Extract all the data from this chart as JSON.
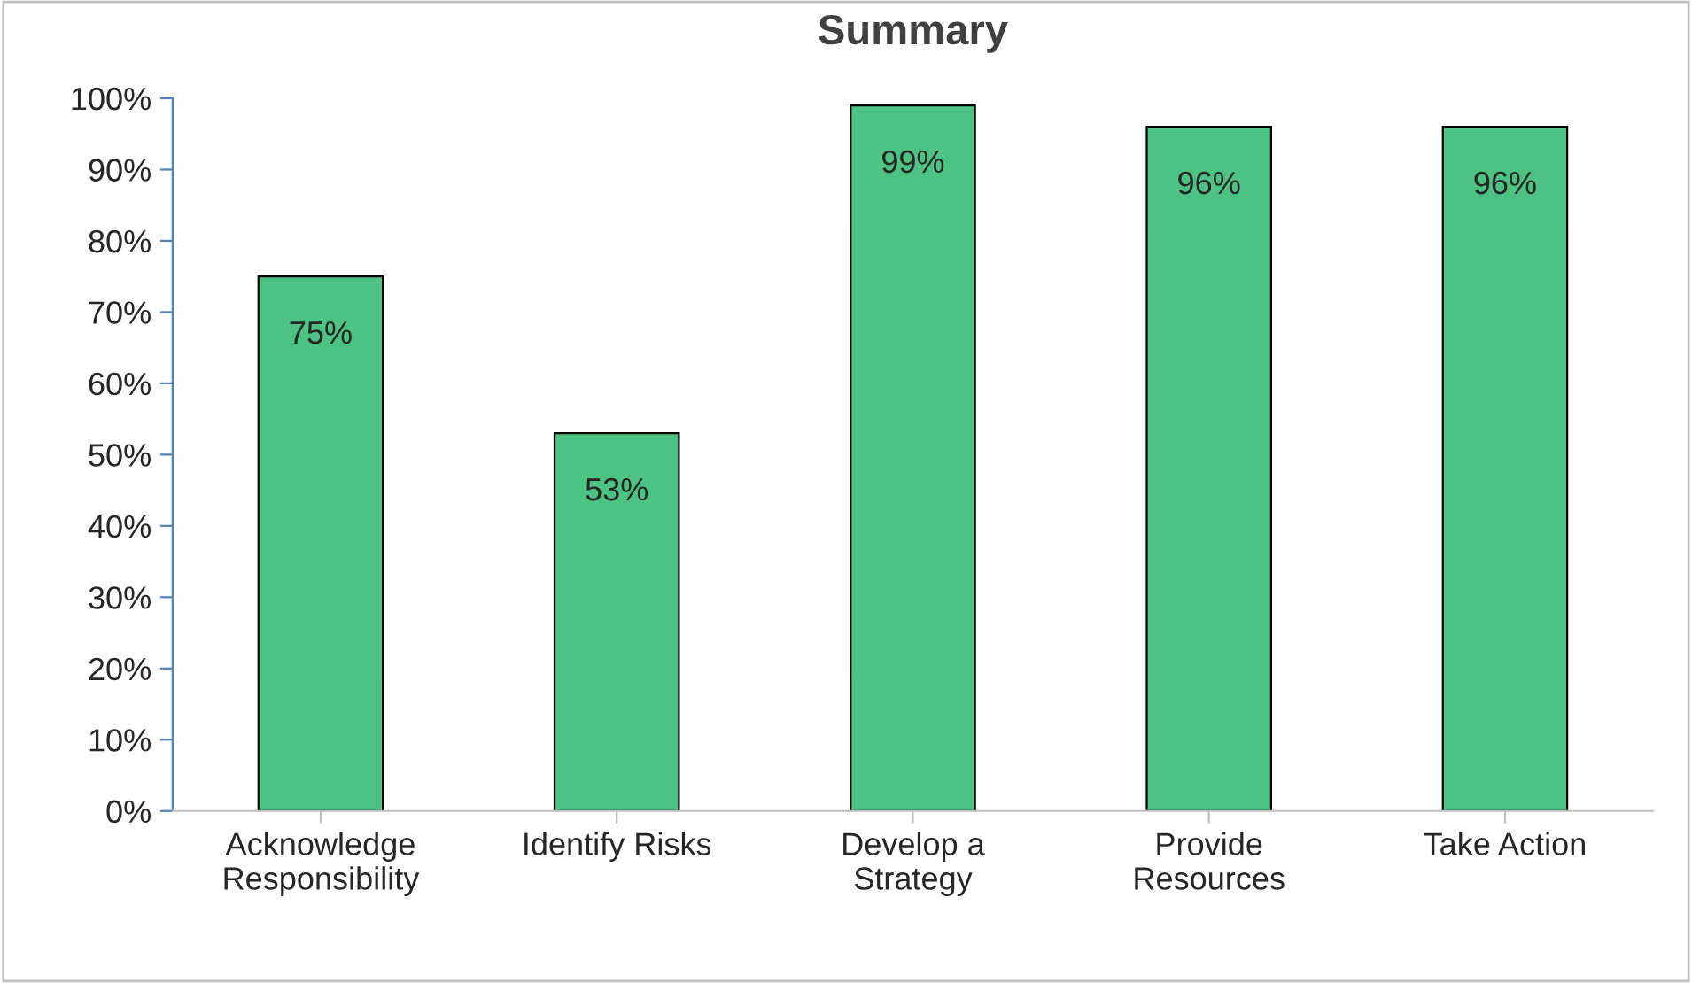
{
  "chart_data": {
    "type": "bar",
    "title": "Summary",
    "categories": [
      "Acknowledge\nResponsibility",
      "Identify Risks",
      "Develop a\nStrategy",
      "Provide\nResources",
      "Take Action"
    ],
    "values": [
      75,
      53,
      99,
      96,
      96
    ],
    "value_labels": [
      "75%",
      "53%",
      "99%",
      "96%",
      "96%"
    ],
    "color": "#4cc283",
    "ylim": [
      0,
      100
    ],
    "yticks": [
      {
        "value": 0,
        "label": "0%"
      },
      {
        "value": 10,
        "label": "10%"
      },
      {
        "value": 20,
        "label": "20%"
      },
      {
        "value": 30,
        "label": "30%"
      },
      {
        "value": 40,
        "label": "40%"
      },
      {
        "value": 50,
        "label": "50%"
      },
      {
        "value": 60,
        "label": "60%"
      },
      {
        "value": 70,
        "label": "70%"
      },
      {
        "value": 80,
        "label": "80%"
      },
      {
        "value": 90,
        "label": "90%"
      },
      {
        "value": 100,
        "label": "100%"
      }
    ],
    "grid": false,
    "legend": false
  }
}
